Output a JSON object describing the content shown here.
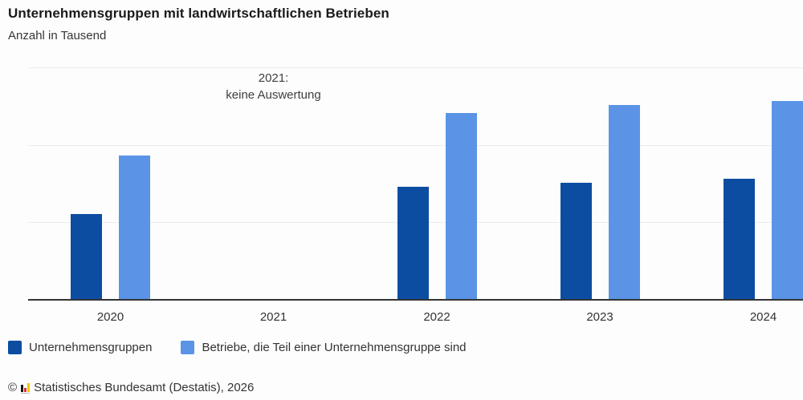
{
  "header": {
    "title": "Unternehmensgruppen mit landwirtschaftlichen Betrieben",
    "subtitle": "Anzahl in Tausend"
  },
  "annotation": {
    "lines": [
      "2021:",
      "keine Auswertung"
    ]
  },
  "legend": [
    {
      "label": "Unternehmensgruppen",
      "color": "#0c4da1"
    },
    {
      "label": "Betriebe, die Teil einer Unternehmensgruppe sind",
      "color": "#5b94e6"
    }
  ],
  "footer": {
    "symbol": "©",
    "text": "Statistisches Bundesamt (Destatis), 2026",
    "logo": "destatis-bars-icon",
    "logo_colors": [
      "#1a1a1a",
      "#e03131",
      "#f5c400"
    ]
  },
  "chart_data": {
    "type": "bar",
    "title": "Unternehmensgruppen mit landwirtschaftlichen Betrieben",
    "subtitle": "Anzahl in Tausend",
    "xlabel": "",
    "ylabel": "Anzahl in Tausend",
    "categories": [
      "2020",
      "2021",
      "2022",
      "2023",
      "2024"
    ],
    "series": [
      {
        "name": "Unternehmensgruppen",
        "color": "#0c4da1",
        "values": [
          1.1,
          null,
          1.45,
          1.5,
          1.55
        ]
      },
      {
        "name": "Betriebe, die Teil einer Unternehmensgruppe sind",
        "color": "#5b94e6",
        "values": [
          1.85,
          null,
          2.4,
          2.5,
          2.55
        ]
      }
    ],
    "ylim": [
      0,
      3
    ],
    "gridlines_at": [
      1,
      2,
      3
    ],
    "y_axis_tick_labels_visible": false,
    "grid": true,
    "legend_position": "bottom",
    "annotations": [
      {
        "category": "2021",
        "text": "2021: keine Auswertung"
      }
    ],
    "note": "values estimated from unlabeled gridlines; 1 unit = one gridline interval"
  }
}
